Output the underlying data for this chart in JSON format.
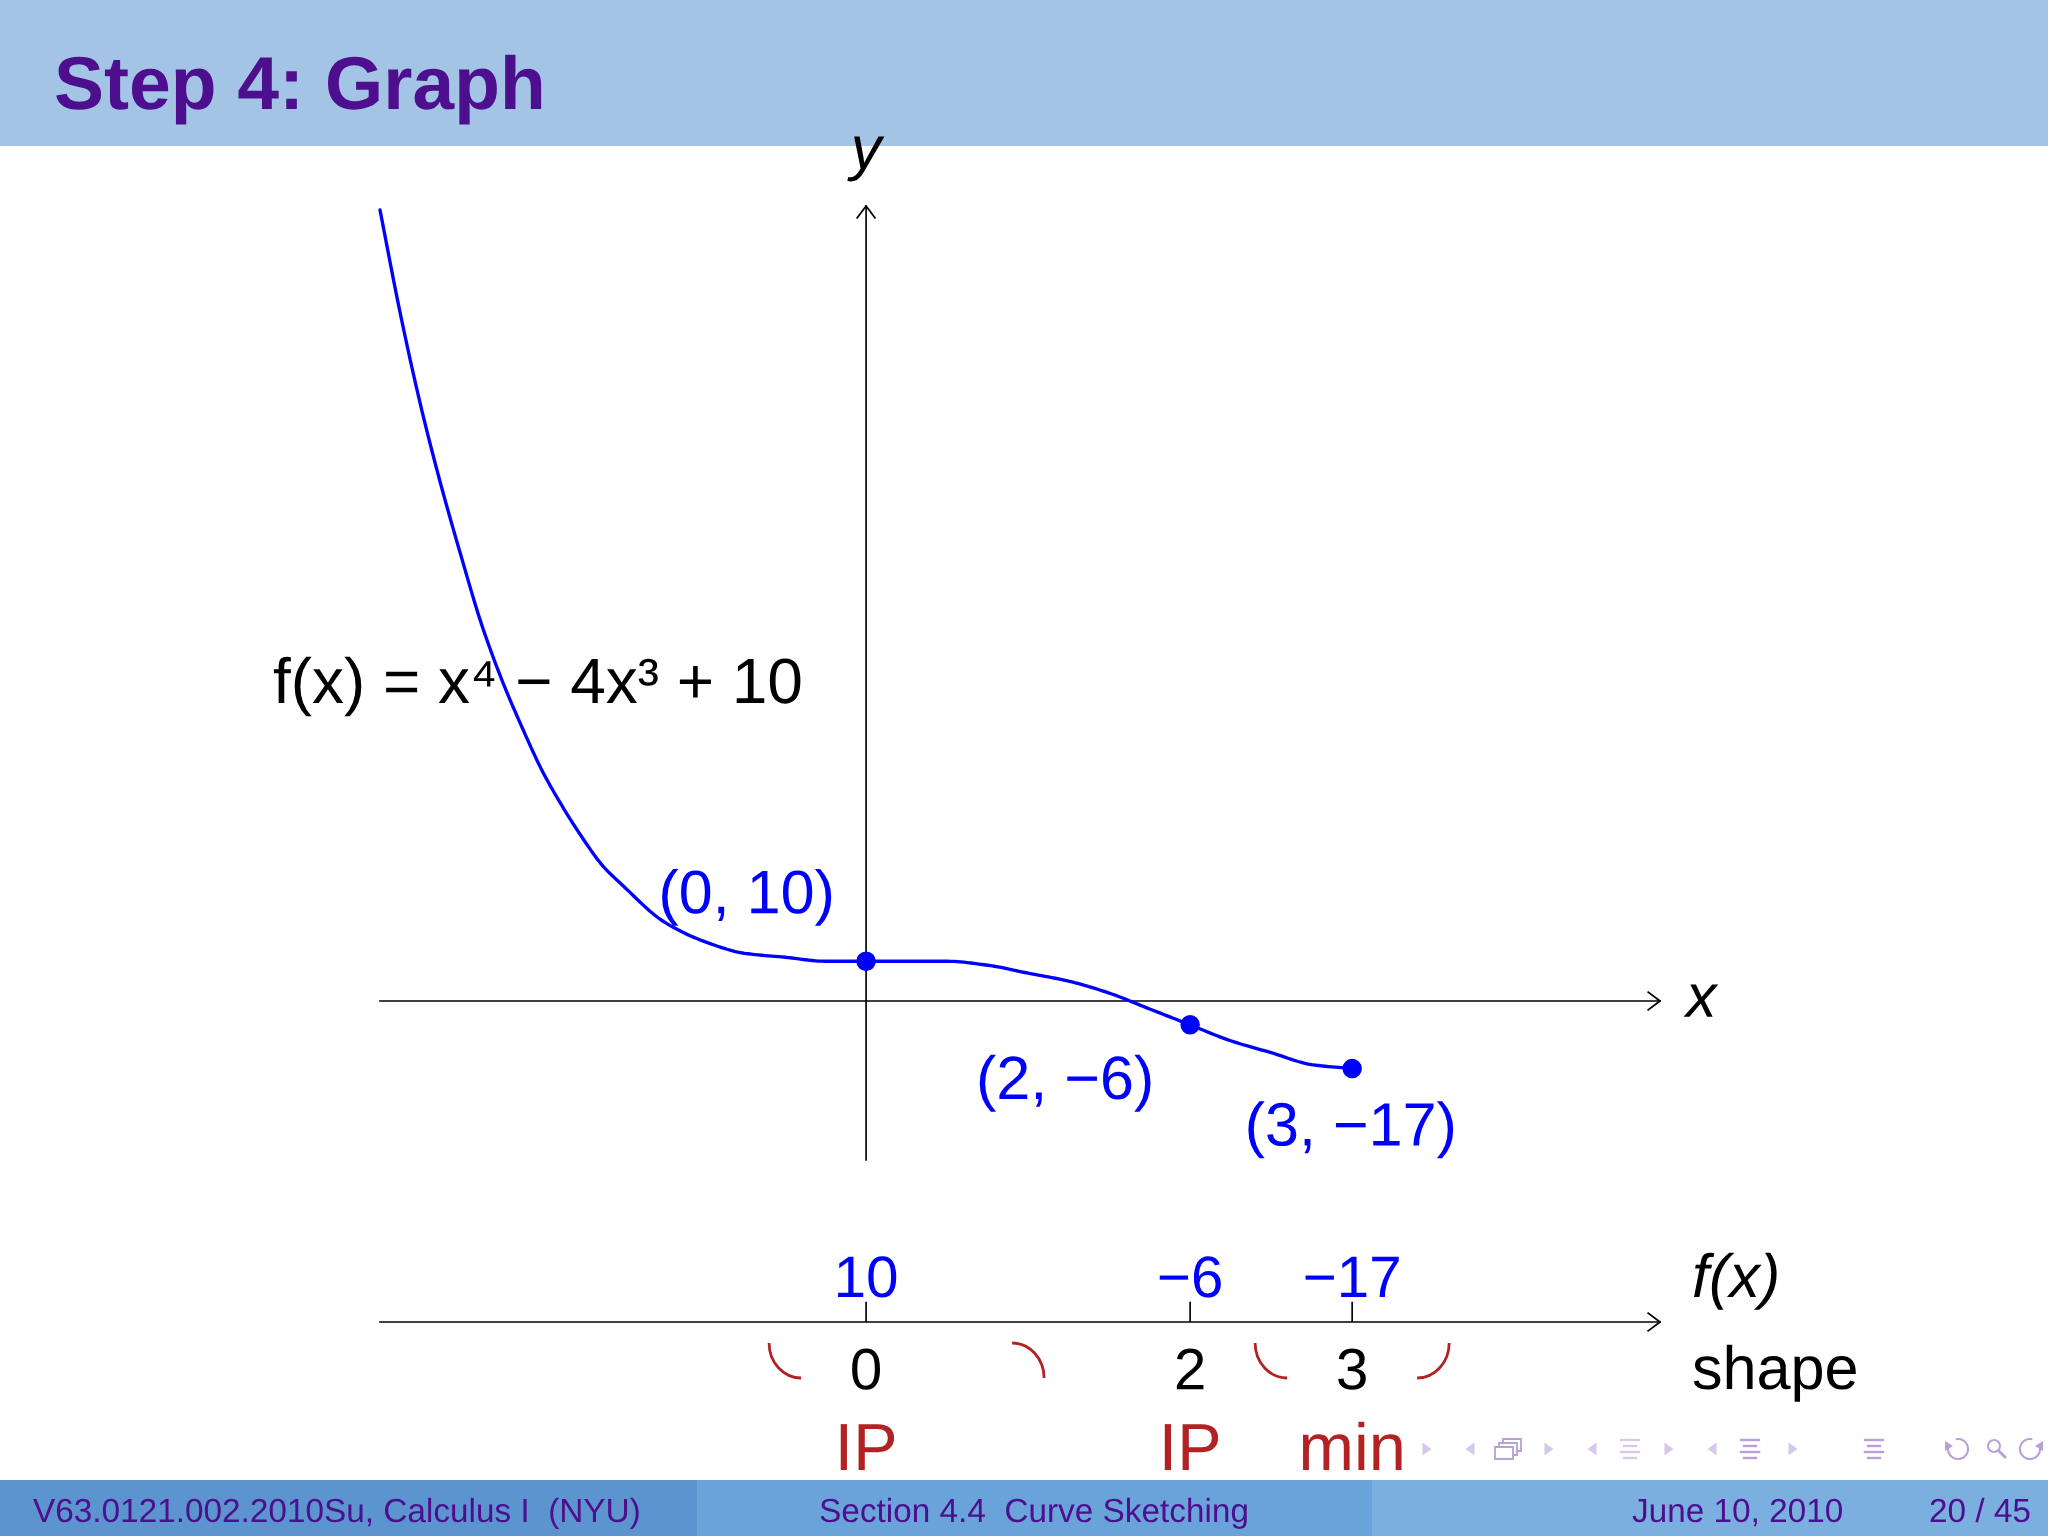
{
  "chart_data": [
    {
      "type": "line",
      "title": "Step 4: Graph",
      "xlabel": "x",
      "ylabel": "y",
      "xlim": [
        -3,
        4.9
      ],
      "ylim": [
        -40,
        200
      ],
      "xticks": [
        0,
        2,
        3
      ],
      "tick_labels": "x",
      "annotations": [
        "f(x) = x⁴ − 4x³ + 10"
      ],
      "series": [
        {
          "type": "line",
          "color": "#0000ff",
          "x": [
            -3,
            -2.875,
            -2.75,
            -2.625,
            -2.5,
            -2.375,
            -2.25,
            -2.125,
            -2,
            -1.875,
            -1.75,
            -1.625,
            -1.5,
            -1.25,
            -1,
            -0.75,
            -0.5,
            -0.25,
            0,
            0.25,
            0.5,
            0.75,
            1,
            1.25,
            1.5,
            1.75,
            2,
            2.25,
            2.5,
            2.75,
            3
          ],
          "values": [
            199,
            173,
            150,
            130,
            112,
            95,
            81,
            69,
            58,
            49,
            41,
            34,
            29,
            20,
            15,
            12,
            11,
            10,
            10,
            10,
            10,
            9,
            7,
            5,
            2,
            -2,
            -6,
            -10,
            -13,
            -16,
            -17
          ]
        },
        {
          "type": "scatter",
          "color": "#0000ff",
          "marker": "circle",
          "x": [
            0,
            2,
            3
          ],
          "values": [
            10,
            -6,
            -17
          ],
          "value_labels": [
            "(0, 10)",
            "(2, −6)",
            "(3, −17)"
          ]
        }
      ]
    },
    {
      "type": "other",
      "annotations": [
        "10",
        "−6",
        "−17",
        "f(x)",
        "shape",
        "IP",
        "IP",
        "min",
        "V63.0121.002.2010Su, Calculus I  (NYU)",
        "Section 4.4  Curve Sketching",
        "June 10, 2010",
        "20 / 45"
      ]
    }
  ]
}
